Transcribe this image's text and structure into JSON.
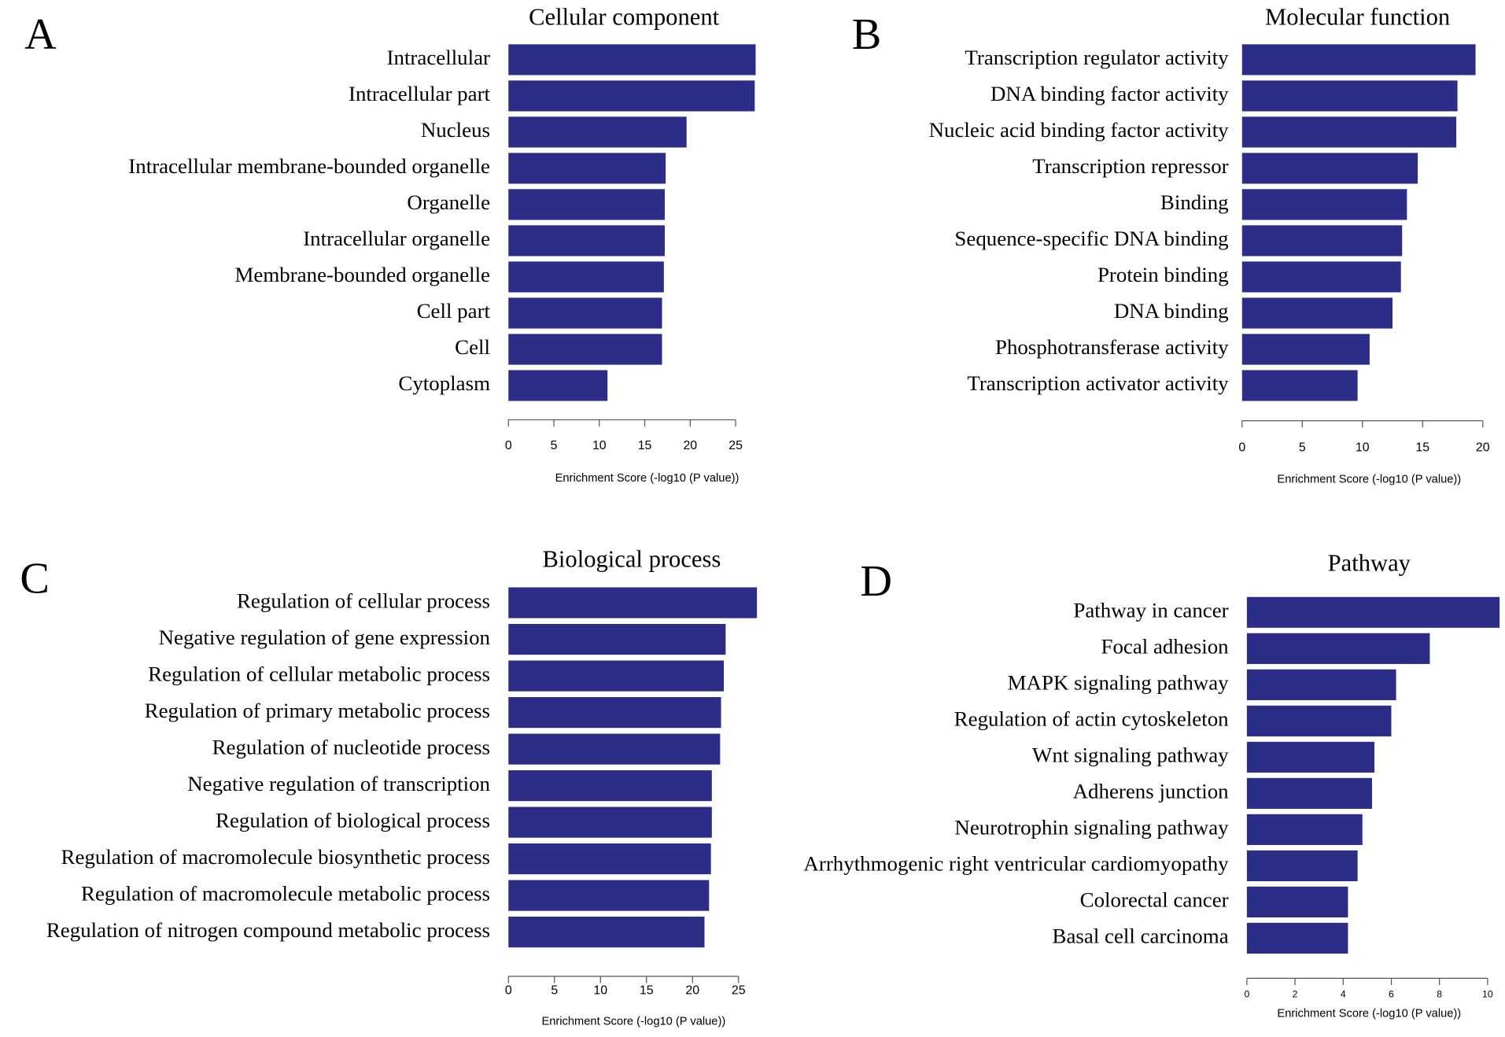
{
  "chart_data": [
    {
      "type": "bar",
      "panel": "A",
      "title": "Cellular component",
      "xlabel": "Enrichment Score (-log10 (P value))",
      "color": "#2b2d87",
      "categories": [
        "Intracellular",
        "Intracellular part",
        "Nucleus",
        "Intracellular membrane-bounded organelle",
        "Organelle",
        "Intracellular organelle",
        "Membrane-bounded organelle",
        "Cell part",
        "Cell",
        "Cytoplasm"
      ],
      "values": [
        27.2,
        27.1,
        19.6,
        17.3,
        17.2,
        17.2,
        17.1,
        16.9,
        16.9,
        10.9
      ],
      "xlim": [
        0,
        25
      ],
      "xticks": [
        0,
        5,
        10,
        15,
        20,
        25
      ]
    },
    {
      "type": "bar",
      "panel": "B",
      "title": "Molecular function",
      "xlabel": "Enrichment Score (-log10 (P value))",
      "color": "#2b2d87",
      "categories": [
        "Transcription regulator activity",
        "DNA binding factor activity",
        "Nucleic acid binding factor activity",
        "Transcription repressor",
        "Binding",
        "Sequence-specific DNA binding",
        "Protein binding",
        "DNA binding",
        "Phosphotransferase activity",
        "Transcription activator activity"
      ],
      "values": [
        19.4,
        17.9,
        17.8,
        14.6,
        13.7,
        13.3,
        13.2,
        12.5,
        10.6,
        9.6
      ],
      "xlim": [
        0,
        20
      ],
      "xticks": [
        0,
        5,
        10,
        15,
        20
      ]
    },
    {
      "type": "bar",
      "panel": "C",
      "title": "Biological process",
      "xlabel": "Enrichment Score (-log10 (P value))",
      "color": "#2b2d87",
      "categories": [
        "Regulation of cellular process",
        "Negative regulation of gene expression",
        "Regulation of cellular metabolic process",
        "Regulation of primary metabolic process",
        "Regulation of nucleotide process",
        "Negative regulation of transcription",
        "Regulation of biological process",
        "Regulation of macromolecule biosynthetic process",
        "Regulation of macromolecule metabolic process",
        "Regulation of nitrogen compound metabolic process"
      ],
      "values": [
        27.0,
        23.6,
        23.4,
        23.1,
        23.0,
        22.1,
        22.1,
        22.0,
        21.8,
        21.3
      ],
      "xlim": [
        0,
        25
      ],
      "xticks": [
        0,
        5,
        10,
        15,
        20,
        25
      ]
    },
    {
      "type": "bar",
      "panel": "D",
      "title": "Pathway",
      "xlabel": "Enrichment Score (-log10 (P value))",
      "color": "#2b2d87",
      "categories": [
        "Pathway in cancer",
        "Focal adhesion",
        "MAPK signaling pathway",
        "Regulation of actin cytoskeleton",
        "Wnt signaling pathway",
        "Adherens junction",
        "Neurotrophin signaling pathway",
        "Arrhythmogenic right ventricular cardiomyopathy",
        "Colorectal cancer",
        "Basal cell carcinoma"
      ],
      "values": [
        10.5,
        7.6,
        6.2,
        6.0,
        5.3,
        5.2,
        4.8,
        4.6,
        4.2,
        4.2
      ],
      "xlim": [
        0,
        10
      ],
      "xticks": [
        0,
        2,
        4,
        6,
        8,
        10
      ]
    }
  ]
}
